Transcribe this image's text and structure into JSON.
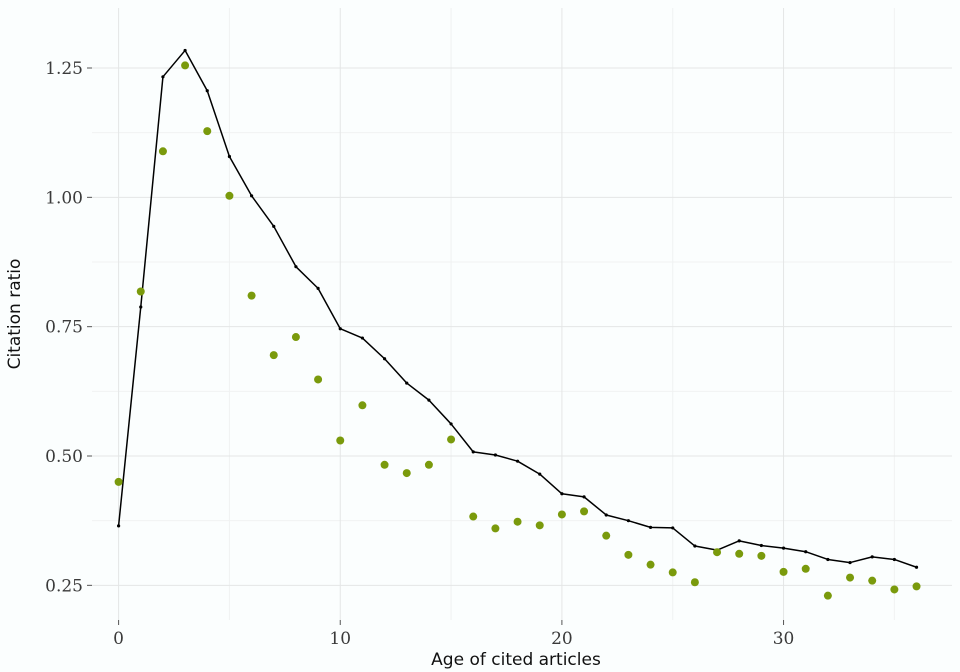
{
  "chart_data": {
    "type": "line",
    "title": "",
    "xlabel": "Age of cited articles",
    "ylabel": "Citation ratio",
    "xlim": [
      -1.2,
      37.6
    ],
    "ylim": [
      0.183,
      1.366
    ],
    "x_ticks": [
      0,
      10,
      20,
      30
    ],
    "x_tick_labels": [
      "0",
      "10",
      "20",
      "30"
    ],
    "y_ticks": [
      0.25,
      0.5,
      0.75,
      1.0,
      1.25
    ],
    "y_tick_labels": [
      "0.25",
      "0.50",
      "0.75",
      "1.00",
      "1.25"
    ],
    "grid": true,
    "legend": "none",
    "colors": {
      "line": "#000000",
      "points": "#7a9a0c"
    },
    "x": [
      0,
      1,
      2,
      3,
      4,
      5,
      6,
      7,
      8,
      9,
      10,
      11,
      12,
      13,
      14,
      15,
      16,
      17,
      18,
      19,
      20,
      21,
      22,
      23,
      24,
      25,
      26,
      27,
      28,
      29,
      30,
      31,
      32,
      33,
      34,
      35,
      36
    ],
    "series": [
      {
        "kind": "line",
        "values": [
          0.365,
          0.788,
          1.233,
          1.284,
          1.206,
          1.079,
          1.003,
          0.944,
          0.866,
          0.824,
          0.746,
          0.728,
          0.688,
          0.641,
          0.608,
          0.562,
          0.508,
          0.502,
          0.49,
          0.465,
          0.427,
          0.421,
          0.386,
          0.375,
          0.362,
          0.361,
          0.326,
          0.318,
          0.336,
          0.327,
          0.322,
          0.315,
          0.3,
          0.294,
          0.305,
          0.3,
          0.285
        ]
      },
      {
        "kind": "points",
        "values": [
          0.45,
          0.818,
          1.089,
          1.255,
          1.128,
          1.003,
          0.81,
          0.695,
          0.73,
          0.648,
          0.53,
          0.598,
          0.483,
          0.467,
          0.483,
          0.532,
          0.383,
          0.36,
          0.373,
          0.366,
          0.387,
          0.393,
          0.346,
          0.309,
          0.29,
          0.275,
          0.256,
          0.314,
          0.311,
          0.307,
          0.276,
          0.282,
          0.23,
          0.265,
          0.259,
          0.242,
          0.248
        ]
      }
    ]
  }
}
